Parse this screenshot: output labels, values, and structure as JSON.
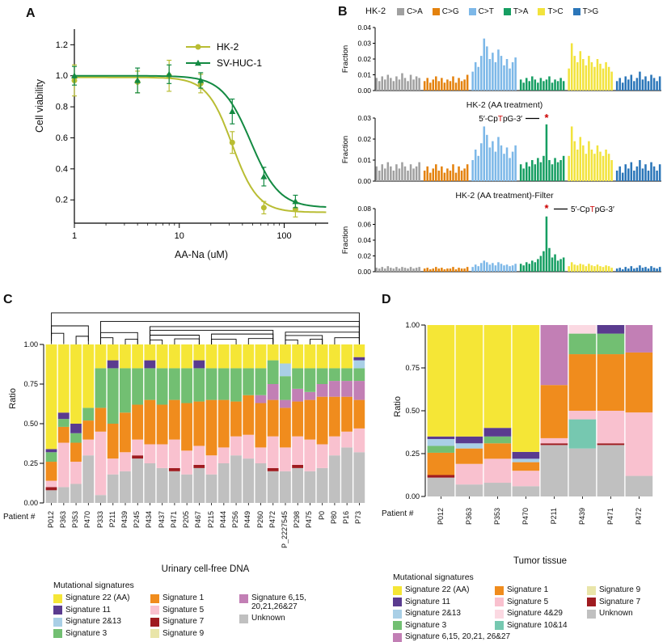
{
  "colors": {
    "mutation_types": {
      "C>A": "#a0a0a0",
      "C>G": "#e4820d",
      "C>T": "#7db8e8",
      "T>A": "#169e62",
      "T>C": "#f2e33c",
      "T>G": "#2b76b9"
    },
    "signatures": {
      "Signature 22 (AA)": "#f5e636",
      "Signature 11": "#5a3b8f",
      "Signature 2&13": "#a9cfe6",
      "Signature 3": "#72bf72",
      "Signature 1": "#f08c1d",
      "Signature 5": "#f9c1cf",
      "Signature 7": "#9f1b20",
      "Signature 9": "#e9e5a9",
      "Signature 6,15,20,21,26&27": "#c27fb5",
      "Signature 4&29": "#fbd9e2",
      "Signature 10&14": "#76c8b0",
      "Unknown": "#c0c0c0"
    }
  },
  "panelA": {
    "label": "A",
    "xlabel": "AA-Na (uM)",
    "ylabel": "Cell viability",
    "xticks": [
      1,
      10,
      100
    ],
    "yticks": [
      0.2,
      0.4,
      0.6,
      0.8,
      1.0,
      1.2
    ],
    "chart_type": "line",
    "series": [
      {
        "name": "HK-2",
        "marker": "circle",
        "color": "#b9bd33",
        "x": [
          1,
          4,
          8,
          16,
          32,
          64,
          128
        ],
        "y": [
          0.97,
          0.96,
          1.0,
          0.95,
          0.57,
          0.15,
          0.14
        ],
        "err": [
          0.1,
          0.07,
          0.1,
          0.06,
          0.07,
          0.04,
          0.05
        ],
        "fit": {
          "top": 0.99,
          "bottom": 0.12,
          "ic50": 32,
          "hill": 3.6
        }
      },
      {
        "name": "SV-HUC-1",
        "marker": "triangle",
        "color": "#138a42",
        "x": [
          1,
          4,
          8,
          16,
          32,
          64,
          128
        ],
        "y": [
          1.0,
          0.97,
          1.01,
          0.97,
          0.77,
          0.35,
          0.19
        ],
        "err": [
          0.06,
          0.08,
          0.06,
          0.05,
          0.08,
          0.06,
          0.04
        ],
        "fit": {
          "top": 1.0,
          "bottom": 0.15,
          "ic50": 48,
          "hill": 3.2
        }
      }
    ]
  },
  "panelB": {
    "label": "B",
    "ylabel": "Fraction",
    "legend": [
      "C>A",
      "C>G",
      "C>T",
      "T>A",
      "T>C",
      "T>G"
    ],
    "plots": [
      {
        "title": "HK-2",
        "ymax": 0.04,
        "yticks": [
          0,
          0.01,
          0.02,
          0.03,
          0.04
        ],
        "values": {
          "C>A": [
            0.008,
            0.006,
            0.009,
            0.007,
            0.01,
            0.008,
            0.006,
            0.009,
            0.007,
            0.011,
            0.008,
            0.006,
            0.01,
            0.007,
            0.009,
            0.008
          ],
          "C>G": [
            0.006,
            0.008,
            0.005,
            0.007,
            0.009,
            0.006,
            0.008,
            0.005,
            0.007,
            0.006,
            0.009,
            0.005,
            0.008,
            0.006,
            0.007,
            0.01
          ],
          "C>T": [
            0.012,
            0.018,
            0.015,
            0.022,
            0.033,
            0.028,
            0.02,
            0.024,
            0.018,
            0.026,
            0.022,
            0.016,
            0.02,
            0.014,
            0.018,
            0.021
          ],
          "T>A": [
            0.007,
            0.005,
            0.008,
            0.006,
            0.009,
            0.007,
            0.005,
            0.008,
            0.006,
            0.007,
            0.009,
            0.005,
            0.007,
            0.006,
            0.008,
            0.006
          ],
          "T>C": [
            0.014,
            0.03,
            0.022,
            0.018,
            0.025,
            0.02,
            0.016,
            0.022,
            0.018,
            0.015,
            0.02,
            0.017,
            0.014,
            0.018,
            0.015,
            0.012
          ],
          "T>G": [
            0.006,
            0.008,
            0.005,
            0.009,
            0.007,
            0.01,
            0.006,
            0.008,
            0.012,
            0.007,
            0.009,
            0.006,
            0.01,
            0.008,
            0.006,
            0.009
          ]
        }
      },
      {
        "title": "HK-2 (AA treatment)",
        "ymax": 0.03,
        "yticks": [
          0,
          0.01,
          0.02,
          0.03
        ],
        "annotation": {
          "pre": "5′-Cp",
          "red": "T",
          "post": "pG-3′",
          "side": "left",
          "bar_index": 9
        },
        "values": {
          "C>A": [
            0.007,
            0.005,
            0.008,
            0.006,
            0.009,
            0.007,
            0.005,
            0.008,
            0.006,
            0.009,
            0.007,
            0.005,
            0.008,
            0.006,
            0.007,
            0.009
          ],
          "C>G": [
            0.005,
            0.007,
            0.004,
            0.006,
            0.008,
            0.005,
            0.007,
            0.004,
            0.006,
            0.005,
            0.008,
            0.004,
            0.007,
            0.005,
            0.006,
            0.008
          ],
          "C>T": [
            0.01,
            0.015,
            0.012,
            0.018,
            0.026,
            0.022,
            0.016,
            0.019,
            0.014,
            0.021,
            0.017,
            0.013,
            0.016,
            0.011,
            0.014,
            0.017
          ],
          "T>A": [
            0.008,
            0.006,
            0.009,
            0.007,
            0.01,
            0.008,
            0.011,
            0.009,
            0.012,
            0.027,
            0.01,
            0.008,
            0.011,
            0.009,
            0.01,
            0.012
          ],
          "T>C": [
            0.012,
            0.026,
            0.019,
            0.015,
            0.021,
            0.017,
            0.013,
            0.019,
            0.015,
            0.013,
            0.017,
            0.014,
            0.012,
            0.015,
            0.013,
            0.01
          ],
          "T>G": [
            0.005,
            0.007,
            0.004,
            0.008,
            0.006,
            0.009,
            0.005,
            0.007,
            0.01,
            0.006,
            0.008,
            0.005,
            0.009,
            0.007,
            0.005,
            0.008
          ]
        }
      },
      {
        "title": "HK-2 (AA treatment)-Filter",
        "ymax": 0.08,
        "yticks": [
          0,
          0.02,
          0.04,
          0.06,
          0.08
        ],
        "annotation": {
          "pre": "5′-Cp",
          "red": "T",
          "post": "pG-3′",
          "side": "right",
          "bar_index": 9
        },
        "values": {
          "C>A": [
            0.005,
            0.004,
            0.006,
            0.004,
            0.007,
            0.005,
            0.004,
            0.006,
            0.004,
            0.006,
            0.005,
            0.004,
            0.006,
            0.004,
            0.005,
            0.006
          ],
          "C>G": [
            0.004,
            0.005,
            0.003,
            0.004,
            0.006,
            0.004,
            0.005,
            0.003,
            0.004,
            0.004,
            0.006,
            0.003,
            0.005,
            0.004,
            0.004,
            0.006
          ],
          "C>T": [
            0.006,
            0.009,
            0.007,
            0.011,
            0.014,
            0.012,
            0.009,
            0.011,
            0.008,
            0.012,
            0.01,
            0.008,
            0.009,
            0.007,
            0.008,
            0.01
          ],
          "T>A": [
            0.01,
            0.008,
            0.012,
            0.01,
            0.014,
            0.012,
            0.016,
            0.02,
            0.026,
            0.07,
            0.03,
            0.018,
            0.022,
            0.014,
            0.016,
            0.018
          ],
          "T>C": [
            0.007,
            0.012,
            0.009,
            0.008,
            0.01,
            0.009,
            0.007,
            0.01,
            0.008,
            0.007,
            0.009,
            0.007,
            0.006,
            0.008,
            0.007,
            0.005
          ],
          "T>G": [
            0.004,
            0.005,
            0.003,
            0.006,
            0.004,
            0.007,
            0.004,
            0.005,
            0.008,
            0.005,
            0.006,
            0.004,
            0.007,
            0.005,
            0.004,
            0.006
          ]
        }
      }
    ]
  },
  "panelC": {
    "label": "C",
    "ylabel": "Ratio",
    "yticks": [
      0,
      0.25,
      0.5,
      0.75,
      1.0
    ],
    "xlabel_prefix": "Patient #",
    "xlabel": "Urinary cell-free DNA",
    "legend_title": "Mutational signatures",
    "chart_type": "stacked-bar",
    "patients": [
      "P012",
      "P363",
      "P353",
      "P470",
      "P333",
      "P211",
      "P439",
      "P245",
      "P434",
      "P437",
      "P471",
      "P205",
      "P467",
      "P215",
      "P444",
      "P256",
      "P449",
      "P260",
      "P472",
      "P_2227545",
      "P298",
      "P475",
      "P0",
      "P80",
      "P16",
      "P73"
    ],
    "stack_order": [
      "Unknown",
      "Signature 9",
      "Signature 7",
      "Signature 5",
      "Signature 1",
      "Signature 6,15,20,21,26&27",
      "Signature 3",
      "Signature 2&13",
      "Signature 11",
      "Signature 22 (AA)"
    ],
    "values": [
      [
        0.08,
        0,
        0.02,
        0.04,
        0.12,
        0,
        0.06,
        0,
        0.02,
        0.66
      ],
      [
        0.1,
        0,
        0,
        0.28,
        0.1,
        0,
        0.05,
        0,
        0.04,
        0.43
      ],
      [
        0.12,
        0,
        0,
        0.14,
        0.12,
        0,
        0.06,
        0,
        0.06,
        0.5
      ],
      [
        0.3,
        0,
        0,
        0.1,
        0.12,
        0,
        0.08,
        0,
        0,
        0.4
      ],
      [
        0.05,
        0,
        0,
        0.4,
        0.15,
        0,
        0.25,
        0,
        0,
        0.15
      ],
      [
        0.18,
        0,
        0,
        0.1,
        0.22,
        0,
        0.35,
        0,
        0.05,
        0.1
      ],
      [
        0.2,
        0,
        0,
        0.12,
        0.25,
        0,
        0.28,
        0,
        0,
        0.15
      ],
      [
        0.28,
        0,
        0.02,
        0.1,
        0.22,
        0,
        0.23,
        0,
        0,
        0.15
      ],
      [
        0.25,
        0,
        0,
        0.12,
        0.28,
        0,
        0.2,
        0,
        0.05,
        0.1
      ],
      [
        0.22,
        0,
        0,
        0.15,
        0.25,
        0,
        0.23,
        0,
        0,
        0.15
      ],
      [
        0.2,
        0,
        0.02,
        0.18,
        0.25,
        0,
        0.2,
        0,
        0,
        0.15
      ],
      [
        0.18,
        0,
        0,
        0.15,
        0.3,
        0,
        0.22,
        0,
        0,
        0.15
      ],
      [
        0.22,
        0,
        0.02,
        0.12,
        0.28,
        0,
        0.21,
        0,
        0.05,
        0.1
      ],
      [
        0.18,
        0,
        0,
        0.12,
        0.35,
        0,
        0.2,
        0,
        0,
        0.15
      ],
      [
        0.25,
        0,
        0,
        0.1,
        0.3,
        0,
        0.2,
        0,
        0,
        0.15
      ],
      [
        0.3,
        0,
        0,
        0.12,
        0.22,
        0,
        0.21,
        0,
        0,
        0.15
      ],
      [
        0.28,
        0,
        0,
        0.15,
        0.25,
        0,
        0.17,
        0,
        0,
        0.15
      ],
      [
        0.25,
        0,
        0,
        0.1,
        0.28,
        0.05,
        0.17,
        0,
        0,
        0.15
      ],
      [
        0.2,
        0,
        0.02,
        0.2,
        0.23,
        0.1,
        0.15,
        0,
        0,
        0.1
      ],
      [
        0.2,
        0,
        0,
        0.15,
        0.25,
        0.05,
        0.15,
        0.08,
        0,
        0.12
      ],
      [
        0.22,
        0,
        0.02,
        0.18,
        0.22,
        0.08,
        0.13,
        0,
        0,
        0.15
      ],
      [
        0.2,
        0,
        0,
        0.2,
        0.25,
        0.05,
        0.15,
        0,
        0,
        0.15
      ],
      [
        0.22,
        0,
        0,
        0.15,
        0.3,
        0.08,
        0.1,
        0,
        0,
        0.15
      ],
      [
        0.3,
        0,
        0,
        0.12,
        0.25,
        0.1,
        0.08,
        0,
        0,
        0.15
      ],
      [
        0.35,
        0,
        0,
        0.1,
        0.22,
        0.1,
        0.08,
        0,
        0,
        0.15
      ],
      [
        0.32,
        0,
        0,
        0.15,
        0.18,
        0.12,
        0.08,
        0.05,
        0.02,
        0.08
      ]
    ],
    "dendrogram": [
      {
        "a": 0,
        "b": 1,
        "h": 0.3
      },
      {
        "a": 2,
        "b": 3,
        "h": 0.22
      },
      {
        "a": 0,
        "b": 3,
        "h": 0.5
      },
      {
        "a": 4,
        "b": 5,
        "h": 0.18
      },
      {
        "a": 6,
        "b": 7,
        "h": 0.14
      },
      {
        "a": 4,
        "b": 7,
        "h": 0.32
      },
      {
        "a": 8,
        "b": 9,
        "h": 0.12
      },
      {
        "a": 10,
        "b": 12,
        "h": 0.15
      },
      {
        "a": 8,
        "b": 12,
        "h": 0.25
      },
      {
        "a": 13,
        "b": 15,
        "h": 0.14
      },
      {
        "a": 16,
        "b": 18,
        "h": 0.16
      },
      {
        "a": 13,
        "b": 18,
        "h": 0.28
      },
      {
        "a": 8,
        "b": 18,
        "h": 0.38
      },
      {
        "a": 19,
        "b": 20,
        "h": 0.12
      },
      {
        "a": 21,
        "b": 22,
        "h": 0.14
      },
      {
        "a": 19,
        "b": 22,
        "h": 0.24
      },
      {
        "a": 23,
        "b": 25,
        "h": 0.18
      },
      {
        "a": 19,
        "b": 25,
        "h": 0.33
      },
      {
        "a": 8,
        "b": 25,
        "h": 0.48
      },
      {
        "a": 4,
        "b": 25,
        "h": 0.62
      },
      {
        "a": 0,
        "b": 25,
        "h": 0.85
      }
    ],
    "legend_columns": [
      [
        {
          "key": "Signature 22 (AA)",
          "label": "Signature 22 (AA)"
        },
        {
          "key": "Signature 11",
          "label": "Signature 11"
        },
        {
          "key": "Signature 2&13",
          "label": "Signature 2&13"
        },
        {
          "key": "Signature 3",
          "label": "Signature 3"
        }
      ],
      [
        {
          "key": "Signature 1",
          "label": "Signature 1"
        },
        {
          "key": "Signature 5",
          "label": "Signature 5"
        },
        {
          "key": "Signature 7",
          "label": "Signature 7"
        },
        {
          "key": "Signature 9",
          "label": "Signature 9"
        }
      ],
      [
        {
          "key": "Signature 6,15,20,21,26&27",
          "label": "Signature 6,15,\n20,21,26&27"
        },
        {
          "key": "Unknown",
          "label": "Unknown"
        }
      ]
    ]
  },
  "panelD": {
    "label": "D",
    "ylabel": "Ratio",
    "yticks": [
      0,
      0.25,
      0.5,
      0.75,
      1.0
    ],
    "xlabel_prefix": "Patient #",
    "xlabel": "Tumor tissue",
    "legend_title": "Mutational signatures",
    "chart_type": "stacked-bar",
    "patients": [
      "P012",
      "P363",
      "P353",
      "P470",
      "P211",
      "P439",
      "P471",
      "P472"
    ],
    "stack_order": [
      "Unknown",
      "Signature 7",
      "Signature 10&14",
      "Signature 5",
      "Signature 1",
      "Signature 3",
      "Signature 4&29",
      "Signature 2&13",
      "Signature 6,15,20,21,26&27",
      "Signature 11",
      "Signature 9",
      "Signature 22 (AA)"
    ],
    "values": [
      [
        0.11,
        0.015,
        0,
        0,
        0.13,
        0.04,
        0,
        0.04,
        0,
        0.015,
        0,
        0.65
      ],
      [
        0.07,
        0,
        0,
        0.12,
        0.09,
        0,
        0,
        0.03,
        0,
        0.04,
        0,
        0.65
      ],
      [
        0.08,
        0,
        0,
        0.14,
        0.09,
        0.04,
        0,
        0,
        0,
        0.05,
        0,
        0.6
      ],
      [
        0.06,
        0,
        0,
        0.09,
        0.05,
        0,
        0,
        0.02,
        0,
        0.04,
        0,
        0.74
      ],
      [
        0.3,
        0.01,
        0,
        0.03,
        0.31,
        0,
        0,
        0,
        0.35,
        0,
        0,
        0
      ],
      [
        0.28,
        0,
        0.17,
        0.05,
        0.33,
        0.12,
        0.05,
        0,
        0,
        0,
        0,
        0
      ],
      [
        0.3,
        0.01,
        0,
        0.19,
        0.33,
        0.12,
        0,
        0,
        0,
        0.05,
        0,
        0
      ],
      [
        0.12,
        0,
        0,
        0.37,
        0.35,
        0,
        0,
        0,
        0.16,
        0,
        0,
        0
      ]
    ],
    "legend_columns": [
      [
        {
          "key": "Signature 22 (AA)",
          "label": "Signature 22 (AA)"
        },
        {
          "key": "Signature 11",
          "label": "Signature 11"
        },
        {
          "key": "Signature 2&13",
          "label": "Signature 2&13"
        },
        {
          "key": "Signature 3",
          "label": "Signature 3"
        },
        {
          "key": "Signature 6,15,20,21,26&27",
          "label": "Signature 6,15, 20,21, 26&27",
          "nowrap": true
        }
      ],
      [
        {
          "key": "Signature 1",
          "label": "Signature 1"
        },
        {
          "key": "Signature 5",
          "label": "Signature 5"
        },
        {
          "key": "Signature 4&29",
          "label": "Signature 4&29"
        },
        {
          "key": "Signature 10&14",
          "label": "Signature 10&14"
        }
      ],
      [
        {
          "key": "Signature 9",
          "label": "Signature 9"
        },
        {
          "key": "Signature 7",
          "label": "Signature 7"
        },
        {
          "key": "Unknown",
          "label": "Unknown"
        }
      ]
    ]
  }
}
